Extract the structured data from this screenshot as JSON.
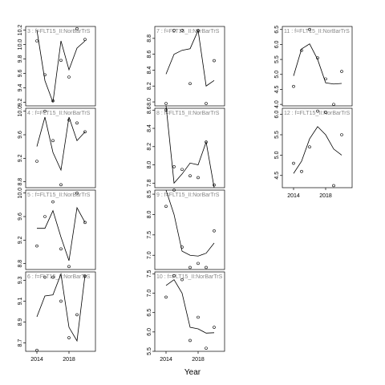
{
  "xlabel": "Year",
  "chart_data": [
    {
      "type": "line",
      "title": "3 : f=FLT15_II:NorBarTrS",
      "x": [
        2014,
        2015,
        2016,
        2017,
        2018,
        2019,
        2020
      ],
      "xlim": [
        2012.6,
        2021.3
      ],
      "ylim": [
        9.15,
        10.25
      ],
      "yticks": [
        9.2,
        9.4,
        9.6,
        9.8,
        {
          "value": 10.0,
          "label": "10.0"
        },
        10.2
      ],
      "series": [
        {
          "values": [
            10.2,
            9.5,
            9.2,
            10.05,
            9.65,
            9.95,
            10.05
          ],
          "color": "#000000"
        },
        {
          "values": [
            10.05,
            9.58,
            9.22,
            9.78,
            9.55,
            10.22,
            10.07
          ],
          "color": "#000000",
          "marker": "circle"
        }
      ]
    },
    {
      "type": "line",
      "title": "4 : f=FLT15_II:NorBarTrS",
      "x": [
        2014,
        2015,
        2016,
        2017,
        2018,
        2019,
        2020
      ],
      "xlim": [
        2012.6,
        2021.3
      ],
      "ylim": [
        8.7,
        10.05
      ],
      "yticks": [
        8.8,
        9.2,
        9.6,
        {
          "value": 10.0,
          "label": "10.0"
        }
      ],
      "series": [
        {
          "values": [
            9.4,
            9.9,
            9.3,
            9.0,
            9.9,
            9.5,
            9.65
          ],
          "color": "#000000"
        },
        {
          "values": [
            9.15,
            10.0,
            9.5,
            8.75,
            9.85,
            9.8,
            9.65
          ],
          "color": "#000000",
          "marker": "circle"
        }
      ]
    },
    {
      "type": "line",
      "title": "5 : f=FLT15_II:NorBarTrS",
      "x": [
        2014,
        2015,
        2016,
        2017,
        2018,
        2019,
        2020
      ],
      "xlim": [
        2012.6,
        2021.3
      ],
      "ylim": [
        8.7,
        10.05
      ],
      "yticks": [
        8.8,
        9.2,
        9.6,
        {
          "value": 10.0,
          "label": "10.0"
        }
      ],
      "series": [
        {
          "values": [
            9.4,
            9.4,
            9.7,
            9.25,
            8.85,
            9.75,
            9.5
          ],
          "color": "#000000"
        },
        {
          "values": [
            9.1,
            9.6,
            9.85,
            9.05,
            8.75,
            10.0,
            9.5
          ],
          "color": "#000000",
          "marker": "circle"
        }
      ]
    },
    {
      "type": "line",
      "title": "6 : f=FLT15_II:NorBarTrS",
      "x": [
        2014,
        2015,
        2016,
        2017,
        2018,
        2019,
        2020
      ],
      "xlim": [
        2012.6,
        2021.3
      ],
      "xticks": [
        2014,
        2018
      ],
      "ylim": [
        8.62,
        9.38
      ],
      "yticks": [
        8.7,
        8.9,
        9.1,
        9.3
      ],
      "series": [
        {
          "values": [
            8.95,
            9.15,
            9.16,
            9.36,
            8.85,
            8.72,
            9.35
          ],
          "color": "#000000"
        },
        {
          "values": [
            8.63,
            9.33,
            9.33,
            9.1,
            8.75,
            8.97,
            9.34
          ],
          "color": "#000000",
          "marker": "circle"
        }
      ]
    },
    {
      "type": "line",
      "title": "7 : f=FLT15_II:NorBarTrS",
      "x": [
        2014,
        2015,
        2016,
        2017,
        2018,
        2019,
        2020
      ],
      "xlim": [
        2012.6,
        2021.3
      ],
      "ylim": [
        7.95,
        8.95
      ],
      "yticks": [
        {
          "value": 8.0,
          "label": "8.0"
        },
        8.2,
        8.4,
        8.6,
        8.8
      ],
      "series": [
        {
          "values": [
            8.35,
            8.6,
            8.65,
            8.67,
            8.9,
            8.2,
            8.27
          ],
          "color": "#000000"
        },
        {
          "values": [
            7.98,
            8.9,
            8.9,
            8.23,
            8.9,
            7.98,
            8.52
          ],
          "color": "#000000",
          "marker": "circle"
        }
      ]
    },
    {
      "type": "line",
      "title": "8 : f=FLT15_II:NorBarTrS",
      "x": [
        2014,
        2015,
        2016,
        2017,
        2018,
        2019,
        2020
      ],
      "xlim": [
        2012.6,
        2021.3
      ],
      "ylim": [
        7.75,
        8.62
      ],
      "yticks": [
        7.8,
        {
          "value": 8.0,
          "label": "8.0"
        },
        8.2,
        8.4,
        8.6
      ],
      "series": [
        {
          "values": [
            8.65,
            7.8,
            7.9,
            8.02,
            8.0,
            8.25,
            7.75
          ],
          "color": "#000000"
        },
        {
          "values": [
            8.6,
            7.98,
            7.95,
            7.88,
            7.86,
            8.25,
            7.78
          ],
          "color": "#000000",
          "marker": "circle"
        }
      ]
    },
    {
      "type": "line",
      "title": "9 : f=FLT15_II:NorBarTrS",
      "x": [
        2014,
        2015,
        2016,
        2017,
        2018,
        2019,
        2020
      ],
      "xlim": [
        2012.6,
        2021.3
      ],
      "ylim": [
        6.65,
        8.6
      ],
      "yticks": [
        {
          "value": 7.0,
          "label": "7.0"
        },
        7.5,
        {
          "value": 8.0,
          "label": "8.0"
        },
        8.5
      ],
      "series": [
        {
          "values": [
            8.6,
            8.0,
            7.1,
            7.0,
            6.98,
            7.05,
            7.3
          ],
          "color": "#000000"
        },
        {
          "values": [
            8.2,
            8.6,
            7.2,
            6.7,
            6.8,
            6.7,
            7.6
          ],
          "color": "#000000",
          "marker": "circle"
        }
      ]
    },
    {
      "type": "line",
      "title": "10 : f=FLT15_II:NorBarTrS",
      "x": [
        2014,
        2015,
        2016,
        2017,
        2018,
        2019,
        2020
      ],
      "xlim": [
        2012.6,
        2021.3
      ],
      "xticks": [
        2014,
        2018
      ],
      "ylim": [
        5.5,
        7.55
      ],
      "yticks": [
        5.5,
        {
          "value": 6.0,
          "label": "6.0"
        },
        6.5,
        {
          "value": 7.0,
          "label": "7.0"
        },
        7.5
      ],
      "series": [
        {
          "values": [
            7.2,
            7.35,
            7.0,
            6.12,
            6.08,
            5.97,
            5.98
          ],
          "color": "#000000"
        },
        {
          "values": [
            6.9,
            7.45,
            7.35,
            5.78,
            6.38,
            5.58,
            6.12
          ],
          "color": "#000000",
          "marker": "circle"
        }
      ]
    },
    {
      "type": "line",
      "title": "11 : f=FLT15_II:NorBarTrS",
      "x": [
        2014,
        2015,
        2016,
        2017,
        2018,
        2019,
        2020
      ],
      "xlim": [
        2012.6,
        2021.3
      ],
      "ylim": [
        3.95,
        6.6
      ],
      "yticks": [
        {
          "value": 4.0,
          "label": "4.0"
        },
        4.5,
        {
          "value": 5.0,
          "label": "5.0"
        },
        5.5,
        {
          "value": 6.0,
          "label": "6.0"
        },
        6.5
      ],
      "series": [
        {
          "values": [
            4.95,
            5.85,
            6.02,
            5.5,
            4.72,
            4.68,
            4.7
          ],
          "color": "#000000"
        },
        {
          "values": [
            4.6,
            5.8,
            6.5,
            5.55,
            4.85,
            4.0,
            5.1
          ],
          "color": "#000000",
          "marker": "circle"
        }
      ]
    },
    {
      "type": "line",
      "title": "12 : f=FLT15_II:NorBarTrS",
      "x": [
        2014,
        2015,
        2016,
        2017,
        2018,
        2019,
        2020
      ],
      "xlim": [
        2012.6,
        2021.3
      ],
      "xticks": [
        2014,
        2018
      ],
      "ylim": [
        4.2,
        6.15
      ],
      "yticks": [
        4.5,
        {
          "value": 5.0,
          "label": "5.0"
        },
        5.5,
        {
          "value": 6.0,
          "label": "6.0"
        }
      ],
      "series": [
        {
          "values": [
            4.55,
            4.85,
            5.4,
            5.7,
            5.5,
            5.15,
            5.0
          ],
          "color": "#000000"
        },
        {
          "values": [
            4.8,
            4.6,
            5.2,
            6.08,
            6.05,
            4.25,
            5.5
          ],
          "color": "#000000",
          "marker": "circle"
        }
      ]
    }
  ]
}
